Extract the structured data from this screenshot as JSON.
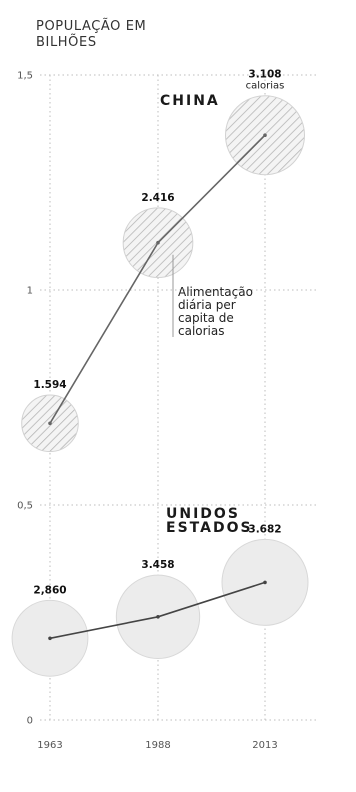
{
  "chart_data": {
    "type": "line",
    "title": "",
    "ylabel_line1": "POPULAÇÃO EM",
    "ylabel_line2": "BILHÕES",
    "ylim": [
      0,
      1.5
    ],
    "yticks": [
      {
        "value": 0,
        "label": "0"
      },
      {
        "value": 0.5,
        "label": "0,5"
      },
      {
        "value": 1,
        "label": "1"
      },
      {
        "value": 1.5,
        "label": "1,5"
      }
    ],
    "x": [
      "1963",
      "1988",
      "2013"
    ],
    "grid": true,
    "series": [
      {
        "name": "CHINA",
        "label_lines": [
          "CHINA"
        ],
        "color": "#666666",
        "bubble_fill": "hatched",
        "values": [
          0.69,
          1.11,
          1.36
        ],
        "calories": [
          "1.594",
          "2.416",
          "3.108"
        ],
        "calorie_unit": "calorias",
        "calorie_unit_on_index": 2
      },
      {
        "name": "ESTADOS UNIDOS",
        "label_lines": [
          "UNIDOS",
          "ESTADOS"
        ],
        "color": "#444444",
        "bubble_fill": "#ececec",
        "values": [
          0.19,
          0.24,
          0.32
        ],
        "calories": [
          "2,860",
          "3.458",
          "3.682"
        ],
        "calorie_unit": "",
        "calorie_unit_on_index": -1
      }
    ],
    "annotation": {
      "lines": [
        "Alimentação",
        "diária per",
        "capita de",
        "calorias"
      ]
    }
  }
}
